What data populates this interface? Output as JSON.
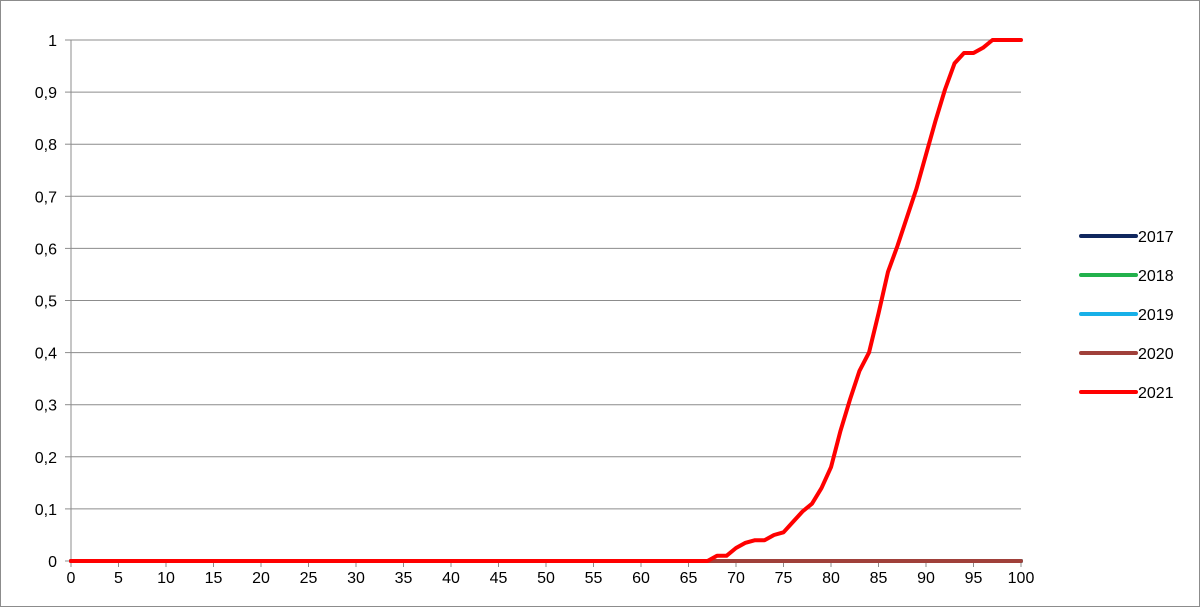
{
  "chart_data": {
    "type": "line",
    "title": "",
    "xlabel": "",
    "ylabel": "",
    "xlim": [
      0,
      100
    ],
    "ylim": [
      0,
      1
    ],
    "x_ticks": [
      0,
      5,
      10,
      15,
      20,
      25,
      30,
      35,
      40,
      45,
      50,
      55,
      60,
      65,
      70,
      75,
      80,
      85,
      90,
      95,
      100
    ],
    "x_tick_labels": [
      "0",
      "5",
      "10",
      "15",
      "20",
      "25",
      "30",
      "35",
      "40",
      "45",
      "50",
      "55",
      "60",
      "65",
      "70",
      "75",
      "80",
      "85",
      "90",
      "95",
      "100"
    ],
    "y_ticks": [
      0,
      0.1,
      0.2,
      0.3,
      0.4,
      0.5,
      0.6,
      0.7,
      0.8,
      0.9,
      1
    ],
    "y_tick_labels": [
      "0",
      "0,1",
      "0,2",
      "0,3",
      "0,4",
      "0,5",
      "0,6",
      "0,7",
      "0,8",
      "0,9",
      "1"
    ],
    "grid": "horizontal",
    "legend_position": "right",
    "series": [
      {
        "name": "2017",
        "color": "#10275e",
        "x": [
          0,
          100
        ],
        "y": [
          0,
          0
        ]
      },
      {
        "name": "2018",
        "color": "#22b14c",
        "x": [
          0,
          100
        ],
        "y": [
          0,
          0
        ]
      },
      {
        "name": "2019",
        "color": "#18b0e8",
        "x": [
          0,
          100
        ],
        "y": [
          0,
          0
        ]
      },
      {
        "name": "2020",
        "color": "#a0403a",
        "x": [
          0,
          100
        ],
        "y": [
          0,
          0
        ]
      },
      {
        "name": "2021",
        "color": "#ff0000",
        "x": [
          0,
          66,
          67,
          68,
          69,
          70,
          71,
          72,
          73,
          74,
          75,
          76,
          77,
          78,
          79,
          80,
          81,
          82,
          83,
          84,
          85,
          86,
          87,
          88,
          89,
          90,
          91,
          92,
          93,
          94,
          95,
          96,
          97,
          98,
          99,
          100
        ],
        "y": [
          0,
          0,
          0,
          0.01,
          0.01,
          0.025,
          0.035,
          0.04,
          0.04,
          0.05,
          0.055,
          0.075,
          0.095,
          0.11,
          0.14,
          0.18,
          0.25,
          0.31,
          0.365,
          0.4,
          0.475,
          0.555,
          0.605,
          0.66,
          0.715,
          0.78,
          0.845,
          0.905,
          0.955,
          0.975,
          0.975,
          0.985,
          1,
          1,
          1,
          1
        ]
      }
    ]
  }
}
